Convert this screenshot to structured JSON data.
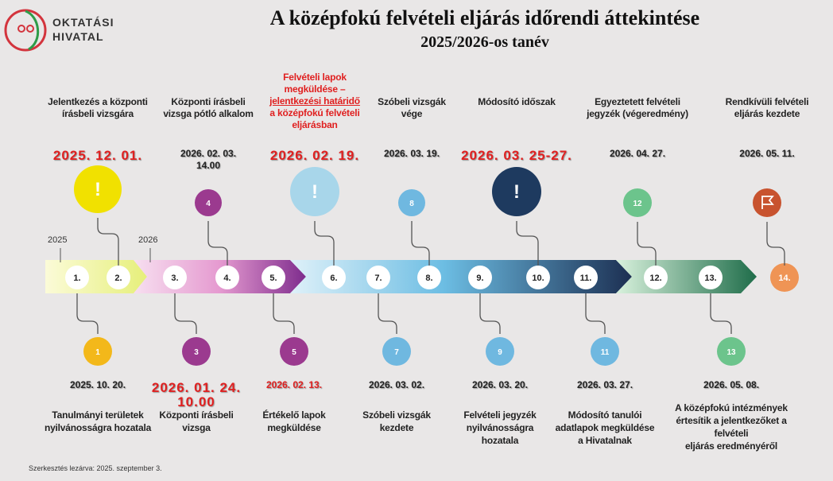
{
  "header": {
    "logo_line1": "OKTATÁSI",
    "logo_line2": "HIVATAL",
    "title": "A középfokú felvételi eljárás időrendi áttekintése",
    "subtitle": "2025/2026-os tanév"
  },
  "years": [
    "2025",
    "2026"
  ],
  "steps": [
    "1.",
    "2.",
    "3.",
    "4.",
    "5.",
    "6.",
    "7.",
    "8.",
    "9.",
    "10.",
    "11.",
    "12.",
    "13.",
    "14."
  ],
  "top_events": [
    {
      "badge": "!",
      "date": [
        "2025. 12. 01."
      ],
      "label": [
        "Jelentkezés a központi",
        "írásbeli vizsgára"
      ]
    },
    {
      "badge": "4",
      "date": [
        "2026. 02. 03.",
        "14.00"
      ],
      "label": [
        "Központi írásbeli",
        "vizsga pótló alkalom"
      ]
    },
    {
      "badge": "!",
      "date": [
        "2026. 02. 19."
      ],
      "label": [
        "Felvételi lapok",
        "megküldése –",
        "jelentkezési határidő",
        "a középfokú felvételi",
        "eljárásban"
      ]
    },
    {
      "badge": "8",
      "date": [
        "2026. 03. 19."
      ],
      "label": [
        "Szóbeli vizsgák",
        "vége"
      ]
    },
    {
      "badge": "!",
      "date": [
        "2026. 03. 25-27."
      ],
      "label": [
        "Módosító időszak"
      ]
    },
    {
      "badge": "12",
      "date": [
        "2026. 04. 27."
      ],
      "label": [
        "Egyeztetett felvételi",
        "jegyzék (végeredmény)"
      ]
    },
    {
      "date": [
        "2026. 05. 11."
      ],
      "label": [
        "Rendkívüli felvételi",
        "eljárás kezdete"
      ]
    }
  ],
  "bottom_events": [
    {
      "badge": "1",
      "date": [
        "2025. 10. 20."
      ],
      "label": [
        "Tanulmányi területek",
        "nyilvánosságra hozatala"
      ]
    },
    {
      "badge": "3",
      "date": [
        "2026. 01. 24.",
        "10.00"
      ],
      "label": [
        "Központi írásbeli",
        "vizsga"
      ]
    },
    {
      "badge": "5",
      "date": [
        "2026. 02. 13."
      ],
      "label": [
        "Értékelő lapok",
        "megküldése"
      ]
    },
    {
      "badge": "7",
      "date": [
        "2026. 03. 02."
      ],
      "label": [
        "Szóbeli vizsgák",
        "kezdete"
      ]
    },
    {
      "badge": "9",
      "date": [
        "2026. 03. 20."
      ],
      "label": [
        "Felvételi jegyzék",
        "nyilvánosságra",
        "hozatala"
      ]
    },
    {
      "badge": "11",
      "date": [
        "2026. 03. 27."
      ],
      "label": [
        "Módosító tanulói",
        "adatlapok megküldése",
        "a Hivatalnak"
      ]
    },
    {
      "badge": "13",
      "date": [
        "2026. 05. 08."
      ],
      "label": [
        "A középfokú intézmények",
        "értesítik a jelentkezőket a",
        "felvételi",
        "eljárás eredményéről"
      ]
    }
  ],
  "footer": "Szerkesztés lezárva: 2025. szeptember 3."
}
